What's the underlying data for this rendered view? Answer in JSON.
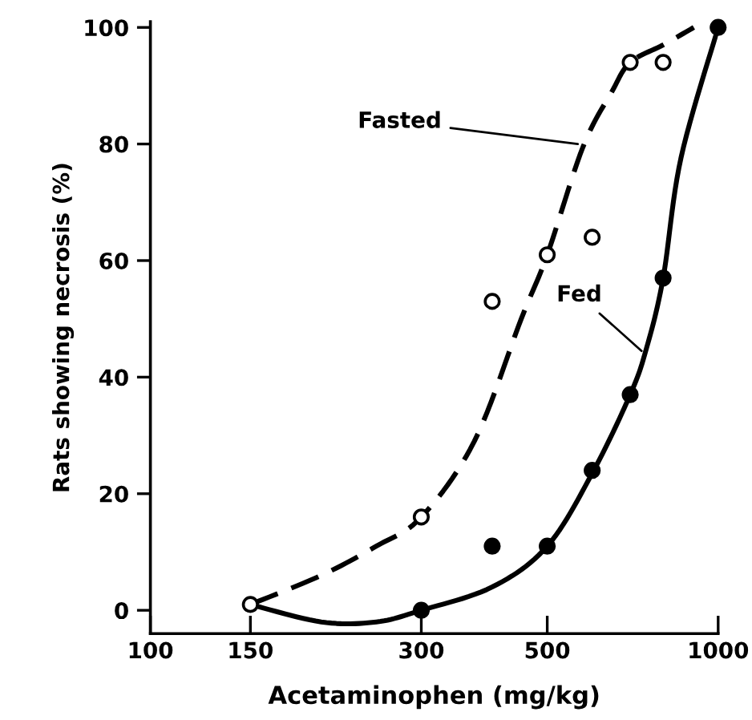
{
  "chart_data": {
    "type": "scatter",
    "xlabel": "Acetaminophen (mg/kg)",
    "ylabel": "Rats showing necrosis (%)",
    "log": "x",
    "xlim": [
      100,
      1000
    ],
    "xticks": [
      100,
      150,
      300,
      500,
      1000
    ],
    "ylim": [
      -4,
      101
    ],
    "yticks": [
      0,
      20,
      40,
      60,
      80,
      100
    ],
    "grid": false,
    "series": [
      {
        "color": "#ffffff",
        "marker": "circle",
        "x": [
          150,
          300,
          400,
          500,
          600,
          700,
          800
        ],
        "values": [
          1,
          16,
          53,
          61,
          64,
          94,
          94
        ]
      },
      {
        "color": "#000000",
        "marker": "circle",
        "x": [
          300,
          400,
          500,
          600,
          700,
          800,
          1000
        ],
        "values": [
          0,
          11,
          11,
          24,
          37,
          57,
          100
        ]
      },
      {
        "type": "line",
        "color": "#000000",
        "line_style": "dashed",
        "marker": "none",
        "x": [
          150,
          200,
          250,
          300,
          372,
          450,
          500,
          578,
          650,
          700,
          800,
          906
        ],
        "values": [
          1,
          6,
          11,
          16,
          29,
          50,
          61,
          79.5,
          89,
          94,
          97,
          100
        ]
      },
      {
        "type": "line",
        "color": "#000000",
        "line_style": "solid",
        "marker": "none",
        "x": [
          150,
          200,
          250,
          300,
          400,
          500,
          600,
          700,
          748,
          800,
          860,
          1000
        ],
        "values": [
          1,
          -2,
          -2,
          0,
          4,
          11,
          23.5,
          37,
          45,
          57,
          77.6,
          100
        ]
      }
    ],
    "annotations": [
      {
        "text": "Fasted",
        "x": 566,
        "y": 80
      },
      {
        "text": "Fed",
        "x": 733,
        "y": 44.5
      }
    ]
  }
}
